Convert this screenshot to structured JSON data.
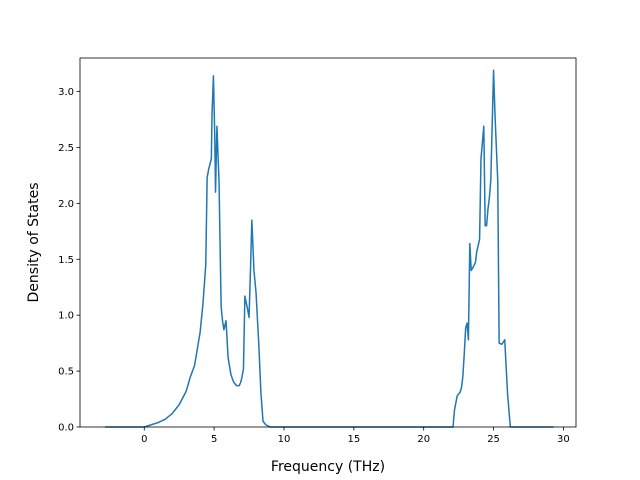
{
  "chart_data": {
    "type": "line",
    "title": "",
    "xlabel": "Frequency (THz)",
    "ylabel": "Density of States",
    "xlim": [
      -4.6,
      30.9
    ],
    "ylim": [
      0.0,
      3.3
    ],
    "x_ticks": [
      0,
      5,
      10,
      15,
      20,
      25,
      30
    ],
    "x_tick_labels": [
      "0",
      "5",
      "10",
      "15",
      "20",
      "25",
      "30"
    ],
    "y_ticks": [
      0.0,
      0.5,
      1.0,
      1.5,
      2.0,
      2.5,
      3.0
    ],
    "y_tick_labels": [
      "0.0",
      "0.5",
      "1.0",
      "1.5",
      "2.0",
      "2.5",
      "3.0"
    ],
    "grid": false,
    "legend": "none",
    "line_color": "#1f77b4",
    "series": [
      {
        "x": [
          -2.8,
          -1.0,
          0.0,
          0.5,
          1.0,
          1.5,
          2.0,
          2.5,
          3.0,
          3.3,
          3.6,
          3.8,
          4.0,
          4.2,
          4.4,
          4.5,
          4.6,
          4.8,
          4.85,
          4.95,
          5.05,
          5.1,
          5.2,
          5.35,
          5.5,
          5.6,
          5.7,
          5.85,
          6.0,
          6.2,
          6.4,
          6.6,
          6.8,
          6.9,
          7.0,
          7.1,
          7.2,
          7.4,
          7.5,
          7.6,
          7.7,
          7.85,
          8.0,
          8.2,
          8.35,
          8.5,
          8.7,
          9.0,
          10.0,
          15.0,
          20.0,
          21.9,
          22.1,
          22.2,
          22.4,
          22.6,
          22.7,
          22.8,
          22.9,
          23.0,
          23.1,
          23.2,
          23.3,
          23.4,
          23.5,
          23.7,
          23.8,
          24.0,
          24.1,
          24.3,
          24.4,
          24.5,
          24.6,
          24.7,
          24.8,
          25.0,
          25.1,
          25.3,
          25.35,
          25.4,
          25.6,
          25.8,
          26.0,
          26.2,
          26.4,
          26.5,
          26.6,
          26.7,
          27.0,
          29.3
        ],
        "y": [
          0.0,
          0.0,
          0.0,
          0.02,
          0.04,
          0.07,
          0.12,
          0.2,
          0.32,
          0.45,
          0.55,
          0.7,
          0.85,
          1.1,
          1.45,
          2.23,
          2.3,
          2.4,
          2.8,
          3.14,
          2.57,
          2.1,
          2.69,
          2.2,
          1.08,
          0.95,
          0.87,
          0.95,
          0.62,
          0.47,
          0.4,
          0.37,
          0.37,
          0.4,
          0.45,
          0.52,
          1.17,
          1.05,
          0.98,
          1.4,
          1.85,
          1.4,
          1.2,
          0.73,
          0.3,
          0.05,
          0.02,
          0.0,
          0.0,
          0.0,
          0.0,
          0.0,
          0.0,
          0.15,
          0.28,
          0.31,
          0.35,
          0.45,
          0.65,
          0.88,
          0.93,
          0.78,
          1.64,
          1.4,
          1.42,
          1.47,
          1.57,
          1.68,
          2.4,
          2.69,
          1.8,
          1.8,
          1.95,
          2.05,
          2.2,
          3.19,
          2.8,
          2.2,
          1.45,
          0.75,
          0.74,
          0.78,
          0.3,
          0.0,
          0.0,
          0.0,
          0.0,
          0.0,
          0.0,
          0.0
        ]
      }
    ]
  }
}
